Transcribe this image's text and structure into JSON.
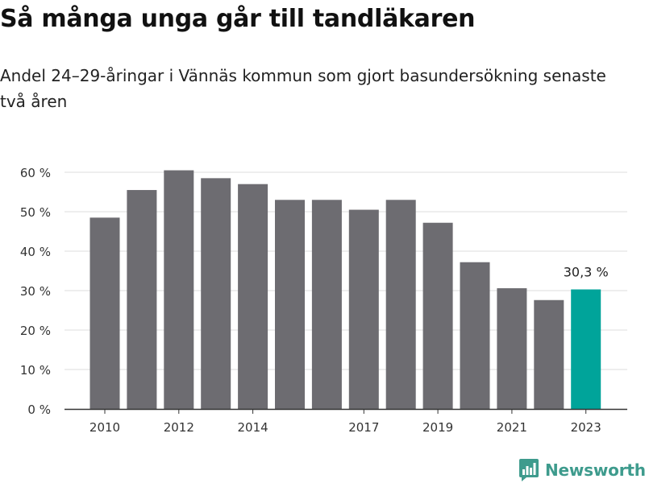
{
  "header": {
    "title": "Så många unga går till tandläkaren",
    "subtitle": "Andel 24–29-åringar i Vännäs kommun som gjort basundersökning senaste två åren"
  },
  "colors": {
    "bar": "#6d6c71",
    "highlight": "#00a49a",
    "grid": "#dddddd",
    "axis": "#333333",
    "logo": "#3e9b8d"
  },
  "chart_data": {
    "type": "bar",
    "title": "Så många unga går till tandläkaren",
    "subtitle": "Andel 24–29-åringar i Vännäs kommun som gjort basundersökning senaste två åren",
    "categories": [
      2010,
      2011,
      2012,
      2013,
      2014,
      2015,
      2016,
      2017,
      2018,
      2019,
      2020,
      2021,
      2022,
      2023
    ],
    "values": [
      48.5,
      55.5,
      60.5,
      58.5,
      57.0,
      53.0,
      53.0,
      50.5,
      53.0,
      47.2,
      37.2,
      30.6,
      27.6,
      30.3
    ],
    "highlight_category": 2023,
    "annotation": "30,3 %",
    "x_tick_labels": [
      "2010",
      "2012",
      "2014",
      "2017",
      "2019",
      "2021",
      "2023"
    ],
    "y_ticks": [
      {
        "value": 0,
        "label": "0 %"
      },
      {
        "value": 10,
        "label": "10 %"
      },
      {
        "value": 20,
        "label": "20 %"
      },
      {
        "value": 30,
        "label": "30 %"
      },
      {
        "value": 40,
        "label": "40 %"
      },
      {
        "value": 50,
        "label": "50 %"
      },
      {
        "value": 60,
        "label": "60 %"
      }
    ],
    "ylim": [
      0,
      60
    ],
    "grid": true,
    "legend": "none"
  },
  "logo": {
    "name": "Newsworthy",
    "icon": "bar-chart-icon"
  }
}
